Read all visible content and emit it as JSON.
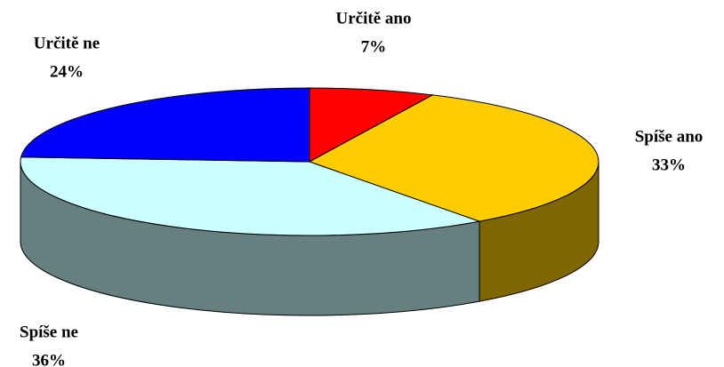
{
  "chart_data": {
    "type": "pie",
    "categories": [
      "Určitě ano",
      "Spíše ano",
      "Spíše ne",
      "Určitě ne"
    ],
    "values": [
      7,
      33,
      36,
      24
    ],
    "value_labels": [
      "7%",
      "33%",
      "36%",
      "24%"
    ],
    "colors": [
      "#ff0000",
      "#ffcc00",
      "#ccffff",
      "#0000ff"
    ],
    "side_colors": [
      "#800000",
      "#806600",
      "#668080",
      "#000080"
    ]
  }
}
